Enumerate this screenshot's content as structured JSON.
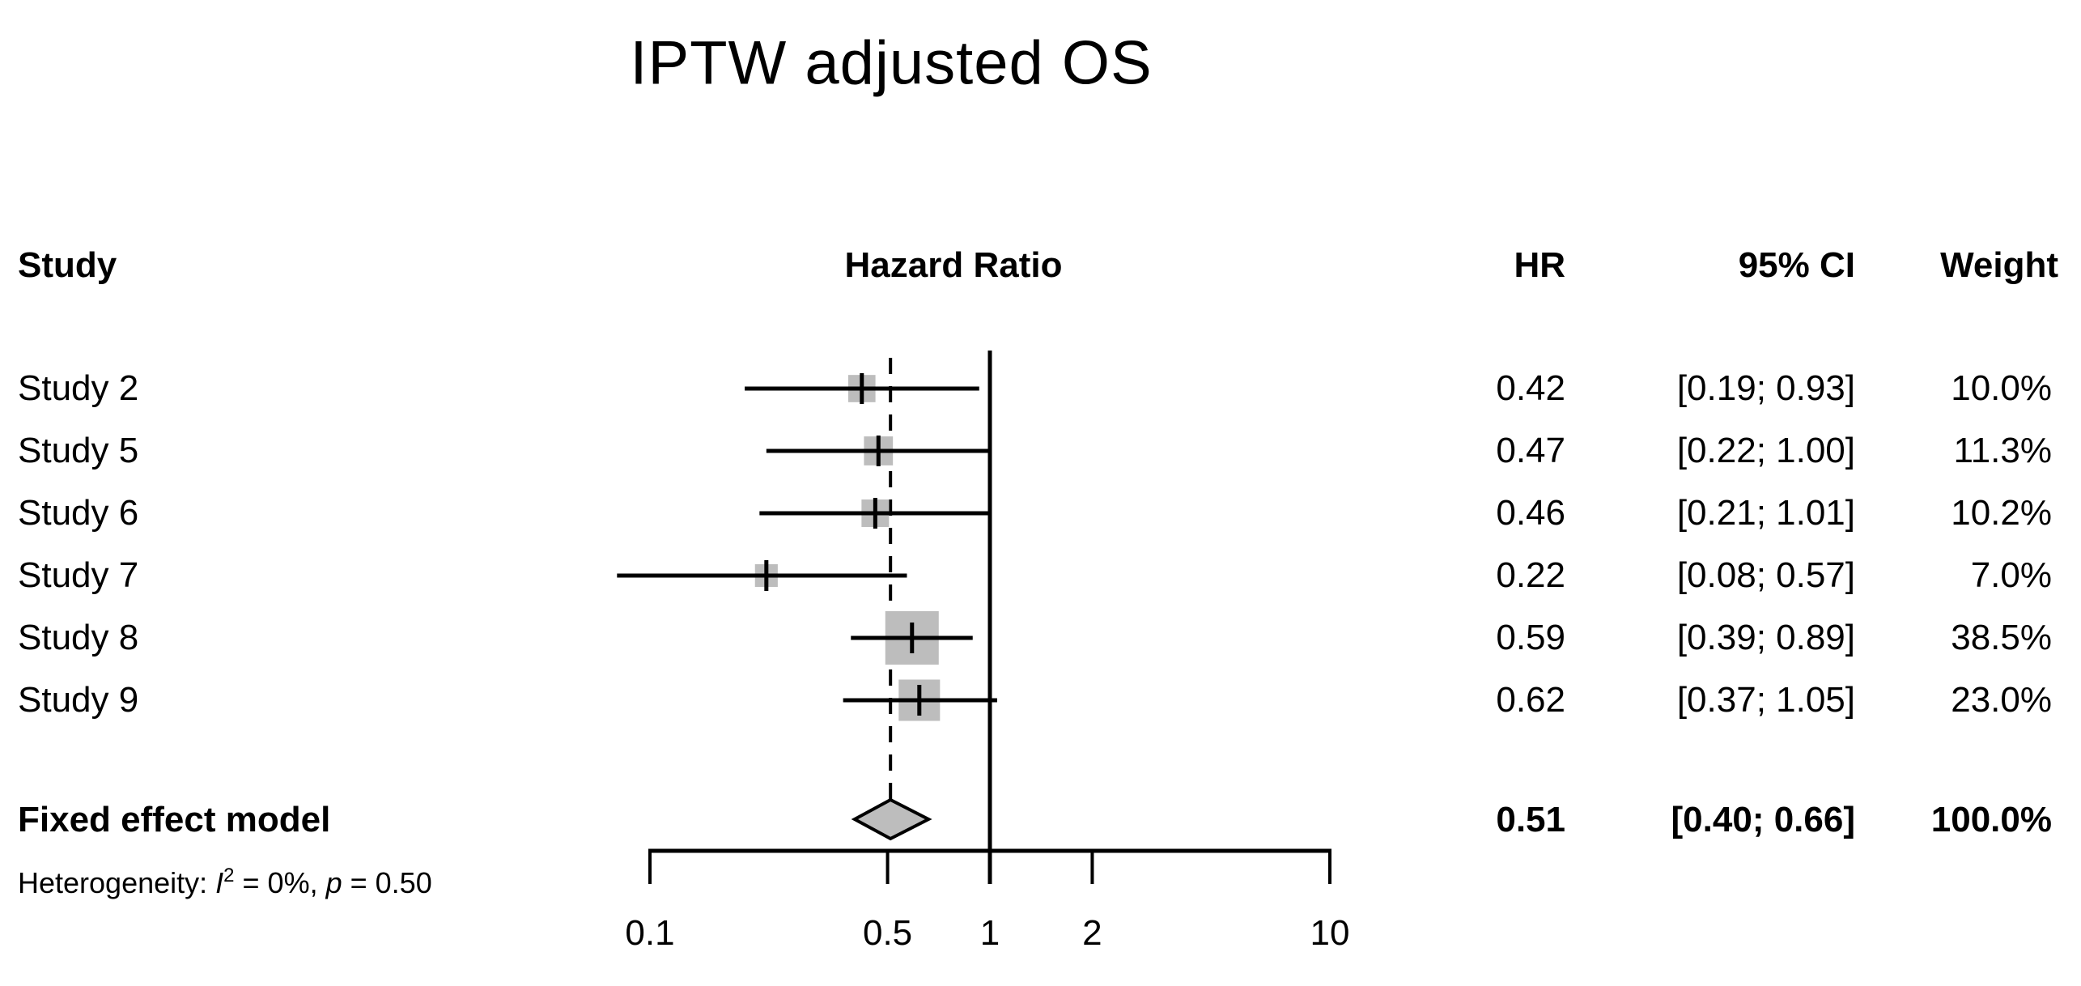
{
  "title": "IPTW adjusted OS",
  "chart_data": {
    "type": "forest",
    "title": "IPTW adjusted OS",
    "x_scale": "log10",
    "xlim": [
      0.1,
      10
    ],
    "x_ticks": [
      0.1,
      0.5,
      1,
      2,
      10
    ],
    "x_tick_labels": [
      "0.1",
      "0.5",
      "1",
      "2",
      "10"
    ],
    "reference_line": 1.0,
    "dashed_line_at_summary": 0.51,
    "grid": false,
    "legend": "none",
    "columns": {
      "study": "Study",
      "hazard_ratio": "Hazard Ratio",
      "hr": "HR",
      "ci": "95% CI",
      "weight": "Weight"
    },
    "studies": [
      {
        "label": "Study 2",
        "hr": 0.42,
        "ci_low": 0.19,
        "ci_high": 0.93,
        "weight_pct": 10.0,
        "hr_text": "0.42",
        "ci_text": "[0.19; 0.93]",
        "weight_text": "10.0%"
      },
      {
        "label": "Study 5",
        "hr": 0.47,
        "ci_low": 0.22,
        "ci_high": 1.0,
        "weight_pct": 11.3,
        "hr_text": "0.47",
        "ci_text": "[0.22; 1.00]",
        "weight_text": "11.3%"
      },
      {
        "label": "Study 6",
        "hr": 0.46,
        "ci_low": 0.21,
        "ci_high": 1.01,
        "weight_pct": 10.2,
        "hr_text": "0.46",
        "ci_text": "[0.21; 1.01]",
        "weight_text": "10.2%"
      },
      {
        "label": "Study 7",
        "hr": 0.22,
        "ci_low": 0.08,
        "ci_high": 0.57,
        "weight_pct": 7.0,
        "hr_text": "0.22",
        "ci_text": "[0.08; 0.57]",
        "weight_text": "7.0%"
      },
      {
        "label": "Study 8",
        "hr": 0.59,
        "ci_low": 0.39,
        "ci_high": 0.89,
        "weight_pct": 38.5,
        "hr_text": "0.59",
        "ci_text": "[0.39; 0.89]",
        "weight_text": "38.5%"
      },
      {
        "label": "Study 9",
        "hr": 0.62,
        "ci_low": 0.37,
        "ci_high": 1.05,
        "weight_pct": 23.0,
        "hr_text": "0.62",
        "ci_text": "[0.37; 1.05]",
        "weight_text": "23.0%"
      }
    ],
    "summary": {
      "label": "Fixed effect model",
      "hr": 0.51,
      "ci_low": 0.4,
      "ci_high": 0.66,
      "weight_pct": 100.0,
      "hr_text": "0.51",
      "ci_text": "[0.40; 0.66]",
      "weight_text": "100.0%"
    },
    "heterogeneity": {
      "prefix": "Heterogeneity: ",
      "i": "I",
      "i_sup": "2",
      "mid": " = 0%, ",
      "p": "p",
      "tail": " = 0.50"
    }
  },
  "colors": {
    "marker_fill": "#bdbdbd",
    "diamond_fill": "#bdbdbd",
    "line": "#000000",
    "background": "#ffffff",
    "text": "#000000"
  }
}
